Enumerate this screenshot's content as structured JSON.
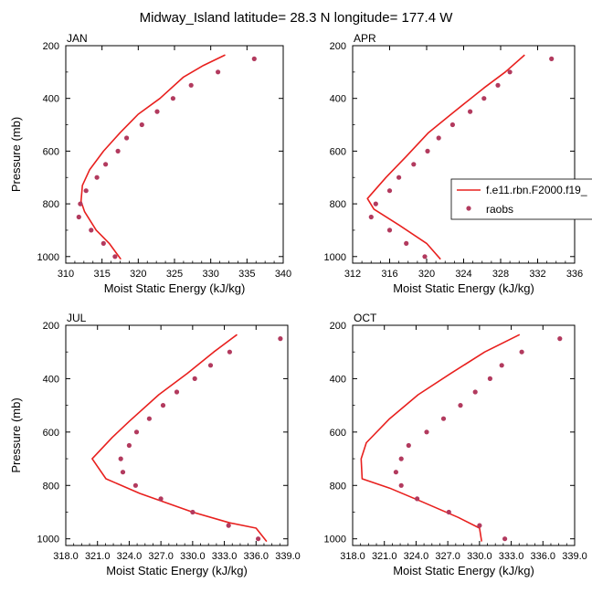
{
  "title": "Midway_Island  latitude= 28.3 N longitude= 177.4 W",
  "colors": {
    "model": "#e8201e",
    "obs": "#b23a5e",
    "axis": "#000000"
  },
  "legend": {
    "model_label": "f.e11.rbn.F2000.f19_",
    "obs_label": "raobs",
    "placement": "right of APR panel"
  },
  "chart_data": [
    {
      "type": "line",
      "panel": "JAN",
      "title": "JAN",
      "xlabel": "Moist Static Energy (kJ/kg)",
      "ylabel": "Pressure (mb)",
      "xlim": [
        310,
        340
      ],
      "ylim": [
        1025,
        200
      ],
      "xticks": [
        310,
        315,
        320,
        325,
        330,
        335,
        340
      ],
      "xtick_labels": [
        "310",
        "315",
        "320",
        "325",
        "330",
        "335",
        "340"
      ],
      "yticks": [
        200,
        400,
        600,
        800,
        1000
      ],
      "series": [
        {
          "name": "f.e11.rbn.F2000.f19_",
          "kind": "line",
          "x": [
            332.0,
            329.0,
            326.2,
            323.0,
            320.0,
            317.5,
            315.2,
            313.3,
            312.3,
            312.1,
            312.6,
            314.2,
            316.0,
            317.6
          ],
          "y": [
            235,
            275,
            320,
            400,
            460,
            530,
            600,
            670,
            730,
            790,
            830,
            900,
            950,
            1010
          ]
        },
        {
          "name": "raobs",
          "kind": "scatter",
          "x": [
            336.0,
            331.0,
            327.3,
            324.8,
            322.6,
            320.5,
            318.4,
            317.2,
            315.5,
            314.3,
            312.8,
            312.0,
            311.8,
            313.5,
            315.2,
            316.8
          ],
          "y": [
            250,
            300,
            350,
            400,
            450,
            500,
            550,
            600,
            650,
            700,
            750,
            800,
            850,
            900,
            950,
            1000
          ]
        }
      ]
    },
    {
      "type": "line",
      "panel": "APR",
      "title": "APR",
      "xlabel": "Moist Static Energy (kJ/kg)",
      "ylabel": "",
      "xlim": [
        312,
        336
      ],
      "ylim": [
        1025,
        200
      ],
      "xticks": [
        312,
        316,
        320,
        324,
        328,
        332,
        336
      ],
      "xtick_labels": [
        "312",
        "316",
        "320",
        "324",
        "328",
        "332",
        "336"
      ],
      "yticks": [
        200,
        400,
        600,
        800,
        1000
      ],
      "series": [
        {
          "name": "f.e11.rbn.F2000.f19_",
          "kind": "line",
          "x": [
            330.6,
            328.5,
            326.2,
            323.0,
            320.2,
            317.8,
            315.6,
            313.6,
            314.3,
            317.0,
            320.0,
            321.5
          ],
          "y": [
            235,
            300,
            360,
            450,
            530,
            620,
            700,
            780,
            820,
            880,
            950,
            1010
          ]
        },
        {
          "name": "raobs",
          "kind": "scatter",
          "x": [
            333.5,
            329.0,
            327.7,
            326.2,
            324.7,
            322.8,
            321.3,
            320.1,
            318.6,
            317.0,
            316.0,
            314.5,
            314.0,
            316.0,
            317.8,
            319.8
          ],
          "y": [
            250,
            300,
            350,
            400,
            450,
            500,
            550,
            600,
            650,
            700,
            750,
            800,
            850,
            900,
            950,
            1000
          ]
        }
      ]
    },
    {
      "type": "line",
      "panel": "JUL",
      "title": "JUL",
      "xlabel": "Moist Static Energy (kJ/kg)",
      "ylabel": "Pressure (mb)",
      "xlim": [
        318,
        339
      ],
      "ylim": [
        1025,
        200
      ],
      "xticks": [
        318,
        321,
        324,
        327,
        330,
        333,
        336,
        339
      ],
      "xtick_labels": [
        "318.0",
        "321.0",
        "324.0",
        "327.0",
        "330.0",
        "333.0",
        "336.0",
        "339.0"
      ],
      "yticks": [
        200,
        400,
        600,
        800,
        1000
      ],
      "series": [
        {
          "name": "f.e11.rbn.F2000.f19_",
          "kind": "line",
          "x": [
            334.2,
            332.0,
            329.5,
            326.8,
            324.0,
            322.4,
            320.5,
            321.8,
            325.0,
            330.0,
            333.5,
            336.0,
            337.0
          ],
          "y": [
            235,
            300,
            380,
            460,
            560,
            620,
            700,
            775,
            830,
            900,
            940,
            960,
            1010
          ]
        },
        {
          "name": "raobs",
          "kind": "scatter",
          "x": [
            338.3,
            333.5,
            331.7,
            330.2,
            328.5,
            327.2,
            325.9,
            324.7,
            324.0,
            323.2,
            323.4,
            324.6,
            327.0,
            330.0,
            333.4,
            336.2
          ],
          "y": [
            250,
            300,
            350,
            400,
            450,
            500,
            550,
            600,
            650,
            700,
            750,
            800,
            850,
            900,
            950,
            1000
          ]
        }
      ]
    },
    {
      "type": "line",
      "panel": "OCT",
      "title": "OCT",
      "xlabel": "Moist Static Energy (kJ/kg)",
      "ylabel": "",
      "xlim": [
        318,
        339
      ],
      "ylim": [
        1025,
        200
      ],
      "xticks": [
        318,
        321,
        324,
        327,
        330,
        333,
        336,
        339
      ],
      "xtick_labels": [
        "318.0",
        "321.0",
        "324.0",
        "327.0",
        "330.0",
        "333.0",
        "336.0",
        "339.0"
      ],
      "yticks": [
        200,
        400,
        600,
        800,
        1000
      ],
      "series": [
        {
          "name": "f.e11.rbn.F2000.f19_",
          "kind": "line",
          "x": [
            333.8,
            330.5,
            327.3,
            324.2,
            321.5,
            319.3,
            318.8,
            318.9,
            321.5,
            324.5,
            328.0,
            330.0,
            330.2
          ],
          "y": [
            235,
            300,
            380,
            460,
            550,
            640,
            700,
            775,
            810,
            860,
            920,
            960,
            1010
          ]
        },
        {
          "name": "raobs",
          "kind": "scatter",
          "x": [
            337.6,
            334.0,
            332.1,
            331.0,
            329.6,
            328.2,
            326.6,
            325.0,
            323.3,
            322.6,
            322.1,
            322.6,
            324.1,
            327.1,
            330.0,
            332.4
          ],
          "y": [
            250,
            300,
            350,
            400,
            450,
            500,
            550,
            600,
            650,
            700,
            750,
            800,
            850,
            900,
            950,
            1000
          ]
        }
      ]
    }
  ]
}
